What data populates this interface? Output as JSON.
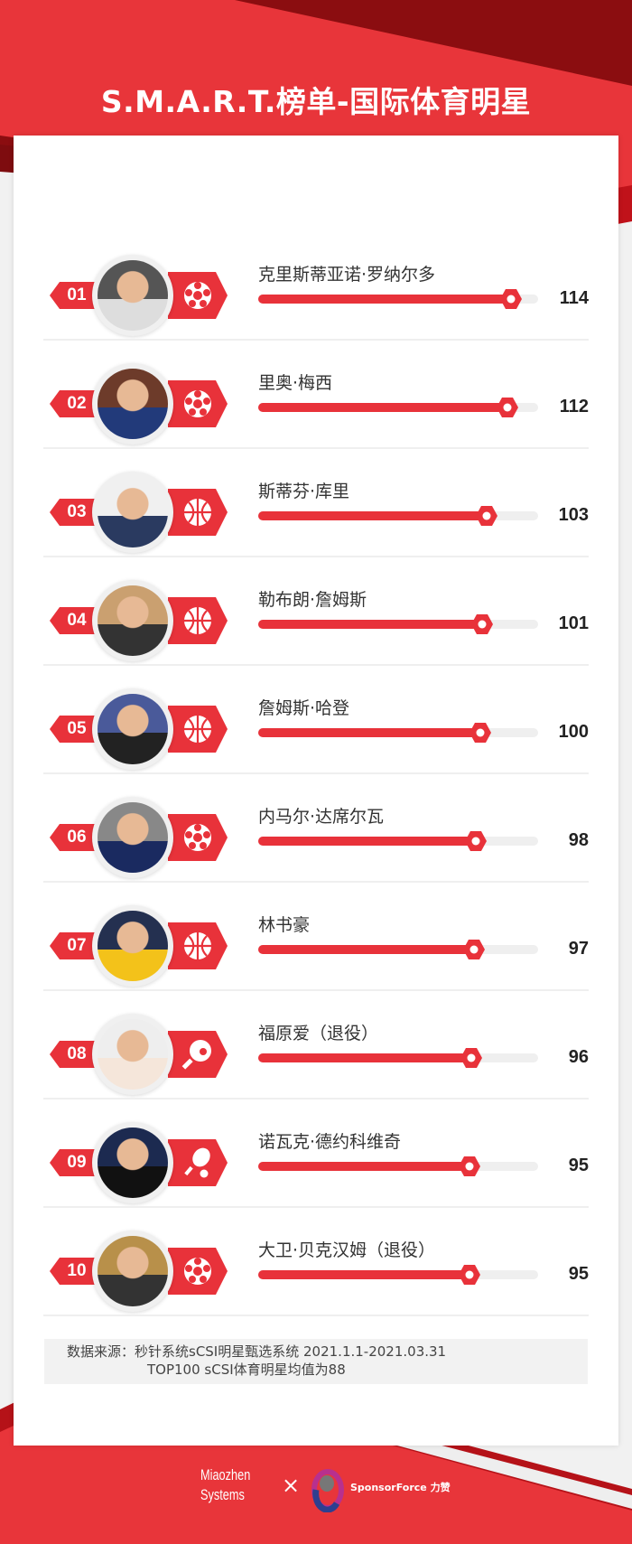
{
  "header": {
    "title": "S.M.A.R.T.榜单-国际体育明星"
  },
  "colors": {
    "accent": "#e8323a",
    "dark_red": "#8b0d10",
    "track": "#efefef"
  },
  "ranking": [
    {
      "rank": "01",
      "name": "克里斯蒂亚诺·罗纳尔多",
      "score": 114,
      "sport": "soccer-icon"
    },
    {
      "rank": "02",
      "name": "里奥·梅西",
      "score": 112,
      "sport": "soccer-icon"
    },
    {
      "rank": "03",
      "name": "斯蒂芬·库里",
      "score": 103,
      "sport": "basketball-icon"
    },
    {
      "rank": "04",
      "name": "勒布朗·詹姆斯",
      "score": 101,
      "sport": "basketball-icon"
    },
    {
      "rank": "05",
      "name": "詹姆斯·哈登",
      "score": 100,
      "sport": "basketball-icon"
    },
    {
      "rank": "06",
      "name": "内马尔·达席尔瓦",
      "score": 98,
      "sport": "soccer-icon"
    },
    {
      "rank": "07",
      "name": "林书豪",
      "score": 97,
      "sport": "basketball-icon"
    },
    {
      "rank": "08",
      "name": "福原爱（退役）",
      "score": 96,
      "sport": "table-tennis-icon"
    },
    {
      "rank": "09",
      "name": "诺瓦克·德约科维奇",
      "score": 95,
      "sport": "tennis-icon"
    },
    {
      "rank": "10",
      "name": "大卫·贝克汉姆（退役）",
      "score": 95,
      "sport": "soccer-icon"
    }
  ],
  "source": {
    "line1": "数据来源：秒针系统sCSI明星甄选系统 2021.1.1-2021.03.31",
    "line2": "TOP100 sCSI体育明星均值为88"
  },
  "footer": {
    "logo1": "Miaozhen Systems",
    "separator": "×",
    "logo2": "SponsorForce 力赞"
  }
}
